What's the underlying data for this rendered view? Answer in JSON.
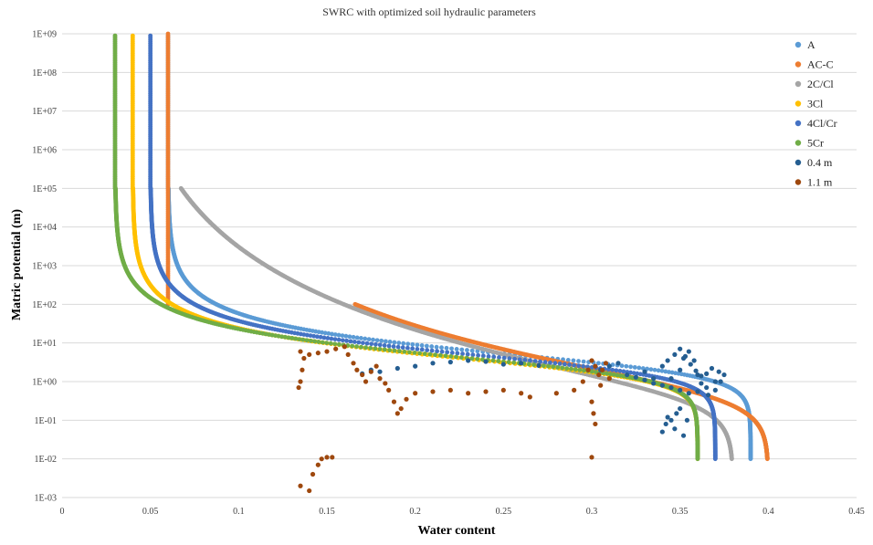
{
  "chart_data": {
    "type": "scatter",
    "title": "SWRC with optimized soil hydraulic parameters",
    "xlabel": "Water content",
    "ylabel": "Matric potential (m)",
    "xlim": [
      0,
      0.45
    ],
    "ylim": [
      0.001,
      1000000000
    ],
    "yscale": "log",
    "grid": true,
    "legend_position": "right",
    "x_ticks": [
      0,
      0.05,
      0.1,
      0.15,
      0.2,
      0.25,
      0.3,
      0.35,
      0.4,
      0.45
    ],
    "x_tick_labels": [
      "0",
      "0.05",
      "0.1",
      "0.15",
      "0.2",
      "0.25",
      "0.3",
      "0.35",
      "0.4",
      "0.45"
    ],
    "y_ticks": [
      0.001,
      0.01,
      0.1,
      1,
      10,
      100,
      1000,
      10000,
      100000,
      1000000,
      10000000,
      100000000,
      1000000000
    ],
    "y_tick_labels": [
      "1E-03",
      "1E-02",
      "1E-01",
      "1E+00",
      "1E+01",
      "1E+02",
      "1E+03",
      "1E+04",
      "1E+05",
      "1E+06",
      "1E+07",
      "1E+08",
      "1E+09"
    ],
    "series": [
      {
        "name": "A",
        "color": "#5B9BD5",
        "curve": {
          "theta_r": 0.06,
          "theta_s": 0.39,
          "alpha": 0.35,
          "n": 1.7,
          "h_max": 100000,
          "residual_vertical": true
        }
      },
      {
        "name": "AC-C",
        "color": "#ED7D31",
        "curve": {
          "theta_r": 0.06,
          "theta_s": 0.4,
          "alpha": 2.0,
          "n": 1.22,
          "h_max": 100,
          "residual_vertical": true
        }
      },
      {
        "name": "2C/Cl",
        "color": "#A5A5A5",
        "curve": {
          "theta_r": 0.03,
          "theta_s": 0.38,
          "alpha": 2.5,
          "n": 1.18,
          "h_max": 100000,
          "residual_vertical": true
        }
      },
      {
        "name": "3Cl",
        "color": "#FFC000",
        "curve": {
          "theta_r": 0.04,
          "theta_s": 0.36,
          "alpha": 0.45,
          "n": 1.7,
          "h_max": 100000,
          "residual_vertical": true
        }
      },
      {
        "name": "4Cl/Cr",
        "color": "#4472C4",
        "curve": {
          "theta_r": 0.05,
          "theta_s": 0.37,
          "alpha": 0.38,
          "n": 1.7,
          "h_max": 100000,
          "residual_vertical": true
        }
      },
      {
        "name": "5Cr",
        "color": "#70AD47",
        "curve": {
          "theta_r": 0.03,
          "theta_s": 0.36,
          "alpha": 0.42,
          "n": 1.68,
          "h_max": 100000,
          "residual_vertical": true
        }
      },
      {
        "name": "0.4 m",
        "color": "#255E91",
        "points": [
          [
            0.34,
            0.05
          ],
          [
            0.342,
            0.08
          ],
          [
            0.343,
            0.12
          ],
          [
            0.345,
            0.1
          ],
          [
            0.347,
            0.06
          ],
          [
            0.348,
            0.15
          ],
          [
            0.35,
            0.2
          ],
          [
            0.352,
            0.04
          ],
          [
            0.354,
            0.1
          ],
          [
            0.345,
            1.2
          ],
          [
            0.35,
            2.0
          ],
          [
            0.352,
            4.0
          ],
          [
            0.355,
            6.0
          ],
          [
            0.358,
            3.5
          ],
          [
            0.36,
            1.5
          ],
          [
            0.362,
            0.9
          ],
          [
            0.365,
            1.6
          ],
          [
            0.368,
            2.2
          ],
          [
            0.37,
            1.0
          ],
          [
            0.33,
            1.8
          ],
          [
            0.335,
            1.2
          ],
          [
            0.34,
            2.5
          ],
          [
            0.343,
            3.5
          ],
          [
            0.347,
            5.0
          ],
          [
            0.35,
            7.0
          ],
          [
            0.353,
            4.5
          ],
          [
            0.356,
            2.8
          ],
          [
            0.359,
            1.9
          ],
          [
            0.362,
            1.4
          ],
          [
            0.32,
            1.5
          ],
          [
            0.325,
            1.3
          ],
          [
            0.33,
            1.1
          ],
          [
            0.335,
            0.9
          ],
          [
            0.34,
            0.8
          ],
          [
            0.345,
            0.7
          ],
          [
            0.35,
            0.6
          ],
          [
            0.355,
            0.5
          ],
          [
            0.36,
            0.55
          ],
          [
            0.365,
            0.7
          ],
          [
            0.372,
            1.8
          ],
          [
            0.375,
            1.5
          ],
          [
            0.373,
            1.0
          ],
          [
            0.37,
            0.6
          ],
          [
            0.366,
            0.45
          ],
          [
            0.31,
            2.5
          ],
          [
            0.305,
            2.0
          ],
          [
            0.315,
            3.0
          ],
          [
            0.17,
            1.6
          ],
          [
            0.175,
            2.0
          ],
          [
            0.18,
            1.8
          ],
          [
            0.19,
            2.2
          ],
          [
            0.2,
            2.5
          ],
          [
            0.21,
            3.0
          ],
          [
            0.22,
            3.2
          ],
          [
            0.23,
            3.5
          ],
          [
            0.24,
            3.3
          ],
          [
            0.25,
            2.8
          ],
          [
            0.26,
            3.0
          ],
          [
            0.27,
            2.6
          ]
        ]
      },
      {
        "name": "1.1 m",
        "color": "#9E480E",
        "points": [
          [
            0.135,
            0.002
          ],
          [
            0.14,
            0.0015
          ],
          [
            0.142,
            0.004
          ],
          [
            0.145,
            0.007
          ],
          [
            0.147,
            0.01
          ],
          [
            0.15,
            0.011
          ],
          [
            0.153,
            0.011
          ],
          [
            0.134,
            0.7
          ],
          [
            0.135,
            1.0
          ],
          [
            0.136,
            2.0
          ],
          [
            0.137,
            4.0
          ],
          [
            0.135,
            6.0
          ],
          [
            0.14,
            5.0
          ],
          [
            0.145,
            5.5
          ],
          [
            0.15,
            6.0
          ],
          [
            0.155,
            7.0
          ],
          [
            0.16,
            8.0
          ],
          [
            0.162,
            5.0
          ],
          [
            0.165,
            3.0
          ],
          [
            0.167,
            2.0
          ],
          [
            0.17,
            1.5
          ],
          [
            0.172,
            1.0
          ],
          [
            0.175,
            1.8
          ],
          [
            0.178,
            2.5
          ],
          [
            0.18,
            1.2
          ],
          [
            0.183,
            0.9
          ],
          [
            0.185,
            0.6
          ],
          [
            0.188,
            0.3
          ],
          [
            0.19,
            0.15
          ],
          [
            0.192,
            0.2
          ],
          [
            0.195,
            0.35
          ],
          [
            0.2,
            0.5
          ],
          [
            0.21,
            0.55
          ],
          [
            0.22,
            0.6
          ],
          [
            0.23,
            0.5
          ],
          [
            0.24,
            0.55
          ],
          [
            0.25,
            0.6
          ],
          [
            0.26,
            0.5
          ],
          [
            0.265,
            0.4
          ],
          [
            0.28,
            0.5
          ],
          [
            0.29,
            0.6
          ],
          [
            0.295,
            1.0
          ],
          [
            0.298,
            2.0
          ],
          [
            0.3,
            3.5
          ],
          [
            0.302,
            2.5
          ],
          [
            0.304,
            1.5
          ],
          [
            0.305,
            0.8
          ],
          [
            0.3,
            0.3
          ],
          [
            0.301,
            0.15
          ],
          [
            0.302,
            0.08
          ],
          [
            0.3,
            0.011
          ],
          [
            0.306,
            2.0
          ],
          [
            0.308,
            3.0
          ],
          [
            0.31,
            1.2
          ]
        ]
      }
    ]
  }
}
